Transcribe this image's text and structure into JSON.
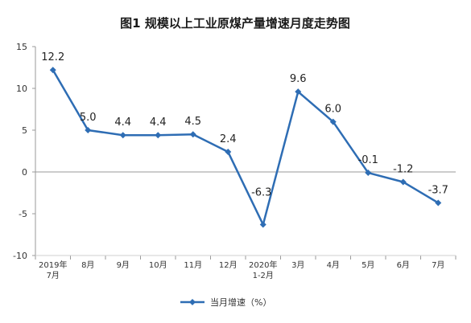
{
  "chart_data": {
    "type": "line",
    "title": "图1  规模以上工业原煤产量增速月度走势图",
    "xlabel": "",
    "ylabel": "",
    "categories": [
      [
        "2019年",
        "7月"
      ],
      [
        "8月"
      ],
      [
        "9月"
      ],
      [
        "10月"
      ],
      [
        "11月"
      ],
      [
        "12月"
      ],
      [
        "2020年",
        "1-2月"
      ],
      [
        "3月"
      ],
      [
        "4月"
      ],
      [
        "5月"
      ],
      [
        "6月"
      ],
      [
        "7月"
      ]
    ],
    "series": [
      {
        "name": "当月增速（%）",
        "values": [
          12.2,
          5.0,
          4.4,
          4.4,
          4.5,
          2.4,
          -6.3,
          9.6,
          6.0,
          -0.1,
          -1.2,
          -3.7
        ],
        "labels": [
          "12.2",
          "5.0",
          "4.4",
          "4.4",
          "4.5",
          "2.4",
          "-6.3",
          "9.6",
          "6.0",
          "-0.1",
          "-1.2",
          "-3.7"
        ]
      }
    ],
    "ylim": [
      -10,
      15
    ],
    "yticks": [
      -10,
      -5,
      0,
      5,
      10,
      15
    ],
    "grid": false,
    "legend_position": "bottom-center",
    "colors": {
      "line": "#2E6DB4",
      "axis": "#9a9a9a"
    }
  }
}
